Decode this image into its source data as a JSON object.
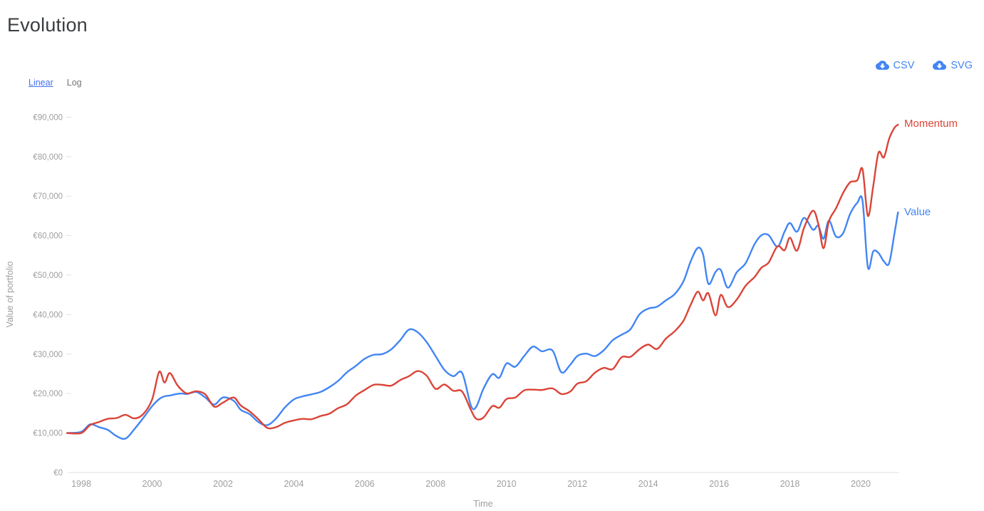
{
  "page": {
    "title": "Evolution"
  },
  "export_buttons": {
    "csv": "CSV",
    "svg": "SVG"
  },
  "scale_toggle": {
    "linear": "Linear",
    "log": "Log",
    "active": "Linear"
  },
  "colors": {
    "accent_blue": "#4285f4",
    "series_red": "#db4437",
    "series_blue": "#4285f4",
    "axis_text": "#9e9e9e",
    "axis_line": "#e0e0e0",
    "title_text": "#3a3d41",
    "muted_text": "#757575"
  },
  "chart_data": {
    "type": "line",
    "title": "Evolution",
    "xlabel": "Time",
    "ylabel": "Value of portfolio",
    "currency": "EUR",
    "ylim": [
      0,
      90000
    ],
    "xlim": [
      1997.6,
      2021.3
    ],
    "grid": false,
    "legend_position": "line-end-labels",
    "y_ticks": [
      0,
      10000,
      20000,
      30000,
      40000,
      50000,
      60000,
      70000,
      80000,
      90000
    ],
    "y_tick_labels": [
      "€0",
      "€10,000",
      "€20,000",
      "€30,000",
      "€40,000",
      "€50,000",
      "€60,000",
      "€70,000",
      "€80,000",
      "€90,000"
    ],
    "x_ticks": [
      1998,
      2000,
      2002,
      2004,
      2006,
      2008,
      2010,
      2012,
      2014,
      2016,
      2018,
      2020
    ],
    "x_tick_labels": [
      "1998",
      "2000",
      "2002",
      "2004",
      "2006",
      "2008",
      "2010",
      "2012",
      "2014",
      "2016",
      "2018",
      "2020"
    ],
    "x": [
      1997.6,
      1998.0,
      1998.25,
      1998.5,
      1998.75,
      1999.0,
      1999.25,
      1999.5,
      1999.75,
      2000.0,
      2000.2,
      2000.35,
      2000.5,
      2000.7,
      2000.85,
      2001.0,
      2001.25,
      2001.5,
      2001.75,
      2002.0,
      2002.3,
      2002.5,
      2002.75,
      2003.0,
      2003.25,
      2003.5,
      2003.75,
      2004.0,
      2004.25,
      2004.5,
      2004.75,
      2005.0,
      2005.25,
      2005.5,
      2005.75,
      2006.0,
      2006.25,
      2006.5,
      2006.75,
      2007.0,
      2007.25,
      2007.5,
      2007.75,
      2008.0,
      2008.25,
      2008.5,
      2008.75,
      2009.0,
      2009.15,
      2009.35,
      2009.6,
      2009.8,
      2010.0,
      2010.25,
      2010.5,
      2010.75,
      2011.0,
      2011.3,
      2011.55,
      2011.8,
      2012.0,
      2012.25,
      2012.5,
      2012.75,
      2013.0,
      2013.25,
      2013.5,
      2013.75,
      2014.0,
      2014.25,
      2014.5,
      2014.75,
      2015.0,
      2015.2,
      2015.4,
      2015.55,
      2015.7,
      2015.9,
      2016.05,
      2016.25,
      2016.5,
      2016.75,
      2017.0,
      2017.2,
      2017.4,
      2017.65,
      2017.85,
      2018.0,
      2018.2,
      2018.4,
      2018.65,
      2018.8,
      2018.95,
      2019.1,
      2019.3,
      2019.5,
      2019.7,
      2019.9,
      2020.05,
      2020.2,
      2020.35,
      2020.5,
      2020.65,
      2020.8,
      2020.95,
      2021.05
    ],
    "series": [
      {
        "name": "Momentum",
        "color": "#db4437",
        "values": [
          10000,
          10000,
          12000,
          12800,
          13600,
          13800,
          14600,
          13700,
          14800,
          18500,
          25500,
          22800,
          25200,
          22300,
          20800,
          20000,
          20600,
          19800,
          16700,
          17700,
          19000,
          17000,
          15500,
          13500,
          11300,
          11500,
          12600,
          13200,
          13600,
          13500,
          14300,
          14900,
          16300,
          17300,
          19500,
          20900,
          22200,
          22200,
          22000,
          23400,
          24400,
          25700,
          24500,
          21200,
          22300,
          20700,
          20500,
          15800,
          13600,
          13900,
          16800,
          16400,
          18600,
          19000,
          20800,
          21000,
          20900,
          21300,
          19900,
          20500,
          22500,
          23100,
          25300,
          26500,
          26200,
          29200,
          29300,
          31200,
          32400,
          31300,
          33900,
          35800,
          38500,
          42500,
          45800,
          43600,
          45400,
          39800,
          45000,
          41900,
          43800,
          47300,
          49500,
          51900,
          53200,
          57300,
          56300,
          59500,
          56200,
          62000,
          66300,
          63000,
          56800,
          63600,
          66900,
          70800,
          73500,
          74000,
          76800,
          65000,
          72500,
          81000,
          79800,
          84500,
          87300,
          88100
        ]
      },
      {
        "name": "Value",
        "color": "#4285f4",
        "values": [
          10000,
          10300,
          12200,
          11500,
          10800,
          9200,
          8600,
          11000,
          13800,
          16800,
          18600,
          19300,
          19500,
          19900,
          20000,
          19900,
          20400,
          19000,
          17200,
          19000,
          18200,
          15900,
          14800,
          12800,
          12000,
          13700,
          16500,
          18500,
          19300,
          19800,
          20400,
          21600,
          23200,
          25400,
          27000,
          28800,
          29800,
          30000,
          31200,
          33500,
          36200,
          35500,
          33000,
          29500,
          26000,
          24400,
          25200,
          16900,
          16700,
          21200,
          24900,
          24000,
          27600,
          26800,
          29500,
          31900,
          30700,
          30900,
          25400,
          27300,
          29500,
          30100,
          29500,
          31000,
          33500,
          34900,
          36300,
          40000,
          41500,
          42000,
          43600,
          45200,
          48500,
          53500,
          56900,
          55200,
          47800,
          50800,
          51300,
          46800,
          50700,
          53000,
          57800,
          60100,
          60100,
          57200,
          61000,
          63200,
          61000,
          64500,
          61500,
          62500,
          59200,
          63800,
          59800,
          60600,
          65500,
          68300,
          68800,
          52000,
          56000,
          55600,
          53500,
          53000,
          60500,
          65900
        ]
      }
    ]
  }
}
